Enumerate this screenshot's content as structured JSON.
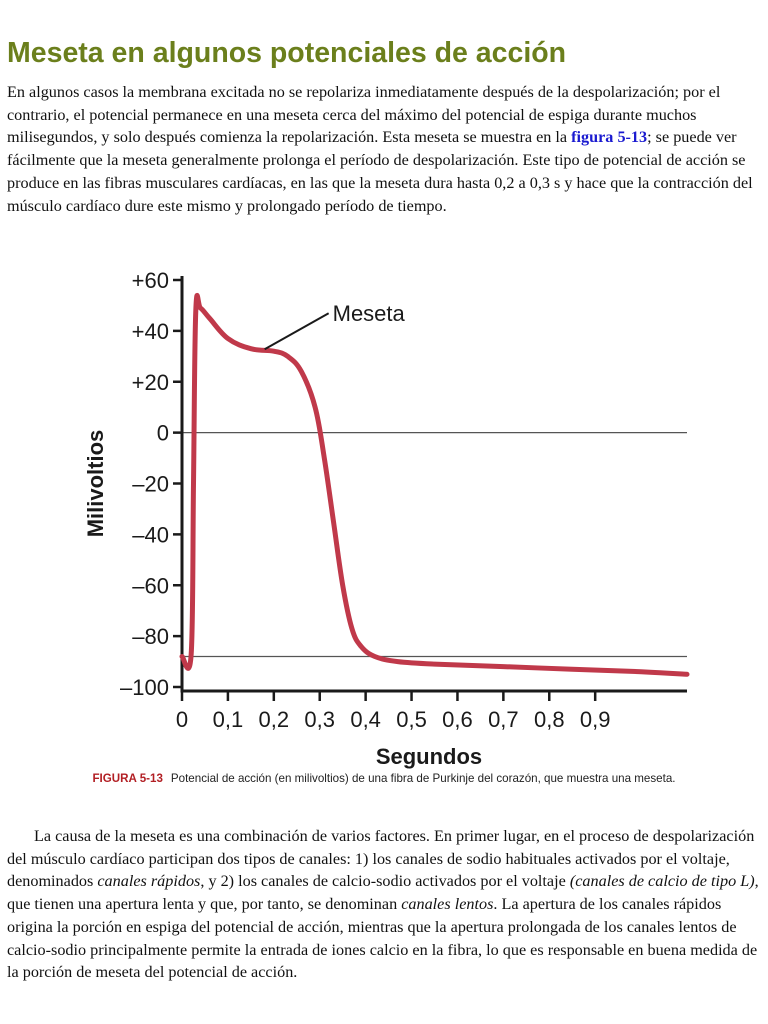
{
  "heading": "Meseta en algunos potenciales de acción",
  "intro": {
    "before_link": "En algunos casos la membrana excitada no se repolariza inmediatamente después de la despolarización; por el contrario, el potencial permanece en una meseta cerca del máximo del potencial de espiga durante muchos milisegundos, y solo después comienza la repolarización. Esta meseta se muestra en la ",
    "link": "figura 5-13",
    "after_link": "; se puede ver fácilmente que la meseta generalmente prolonga el período de despolarización. Este tipo de potencial de acción se produce en las fibras musculares cardíacas, en las que la meseta dura hasta 0,2 a 0,3 s y hace que la contracción del músculo cardíaco dure este mismo y prolongado período de tiempo."
  },
  "figure": {
    "label": "FIGURA 5-13",
    "caption": "Potencial de acción (en milivoltios) de una fibra de Purkinje del corazón, que muestra una meseta."
  },
  "chart_data": {
    "type": "line",
    "title": "",
    "xlabel": "Segundos",
    "ylabel": "Milivoltios",
    "xlim": [
      0,
      1.1
    ],
    "ylim": [
      -100,
      60
    ],
    "x_ticks": [
      0,
      0.1,
      0.2,
      0.3,
      0.4,
      0.5,
      0.6,
      0.7,
      0.8,
      0.9
    ],
    "x_tick_labels": [
      "0",
      "0,1",
      "0,2",
      "0,3",
      "0,4",
      "0,5",
      "0,6",
      "0,7",
      "0,8",
      "0,9"
    ],
    "y_ticks": [
      60,
      40,
      20,
      0,
      -20,
      -40,
      -60,
      -80,
      -100
    ],
    "y_tick_labels": [
      "+60",
      "+40",
      "+20",
      "0",
      "–20",
      "–40",
      "–60",
      "–80",
      "–100"
    ],
    "reference_lines": [
      0,
      -88
    ],
    "series": [
      {
        "color": "#c0394a",
        "x": [
          0,
          0.02,
          0.025,
          0.03,
          0.04,
          0.06,
          0.1,
          0.15,
          0.2,
          0.23,
          0.26,
          0.29,
          0.31,
          0.33,
          0.35,
          0.37,
          0.39,
          0.42,
          0.47,
          0.55,
          0.7,
          0.85,
          1.0,
          1.1
        ],
        "y": [
          -88,
          -87,
          -20,
          48,
          49,
          45,
          37,
          33,
          32,
          30,
          24,
          10,
          -10,
          -35,
          -60,
          -77,
          -84,
          -88,
          -90,
          -91,
          -92,
          -93,
          -94,
          -95
        ]
      }
    ],
    "annotations": [
      {
        "text": "Meseta",
        "x": 0.18,
        "y": 32
      }
    ],
    "grid": false,
    "legend": "none"
  },
  "body_text": {
    "s1": "La causa de la meseta es una combinación de varios factores. En primer lugar, en el proceso de despolarización del músculo cardíaco participan dos tipos de canales: 1) los canales de sodio habituales activados por el voltaje, denominados ",
    "fast_channels": "canales rápidos",
    "s2": ", y 2) los canales de calcio-sodio activados por el voltaje ",
    "l_type": "(canales de calcio de tipo L)",
    "s3": ", que tienen una apertura lenta y que, por tanto, se denominan ",
    "slow_channels": "canales lentos",
    "s4": ". La apertura de los canales rápidos origina la porción en espiga del potencial de acción, mientras que la apertura prolongada de los canales lentos de calcio-sodio principalmente permite la entrada de iones calcio en la fibra, lo que es responsable en buena medida de la porción de meseta del potencial de acción."
  },
  "colors": {
    "heading": "#6b7f1c",
    "link": "#1a1ad0",
    "figure_label": "#b21f24",
    "curve": "#c0394a",
    "axis": "#1a1a1a",
    "reference_line": "#555555"
  }
}
